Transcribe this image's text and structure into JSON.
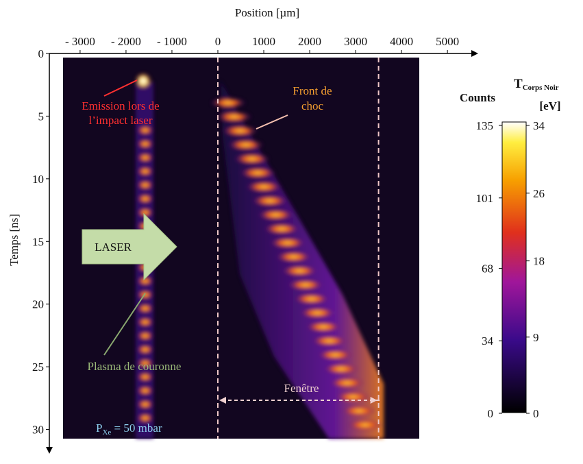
{
  "chart_data": {
    "type": "image",
    "xlabel": "Position [µm]",
    "ylabel": "Temps [ns]",
    "xlim": [
      -3670,
      5550
    ],
    "ylim": [
      0,
      31.5
    ],
    "xticks": [
      {
        "value": -3000,
        "label": "- 3000"
      },
      {
        "value": -2000,
        "label": "- 2000"
      },
      {
        "value": -1000,
        "label": "- 1000"
      },
      0,
      1000,
      2000,
      3000,
      4000,
      5000
    ],
    "yticks": [
      0,
      5,
      10,
      15,
      20,
      25,
      30
    ],
    "window": [
      0,
      3500
    ],
    "annotations": {
      "emission": [
        "Emission lors de",
        "l’impact laser"
      ],
      "front": [
        "Front de",
        "choc"
      ],
      "laser": "LASER",
      "plasma": "Plasma de couronne",
      "window": "Fenêtre",
      "pressure": {
        "symbol": "P",
        "subscript": "Xe",
        "text": " = 50 mbar"
      }
    },
    "colorbar": {
      "label": "Counts",
      "lim": [
        0,
        135
      ],
      "ticks": [
        0,
        34,
        68,
        101,
        135
      ]
    },
    "colorbar2": {
      "symbol": "T",
      "subscript": "Corps Noir",
      "unit": "[eV]",
      "lim": [
        0,
        34
      ],
      "ticks": [
        0,
        9,
        18,
        26,
        34
      ]
    }
  }
}
